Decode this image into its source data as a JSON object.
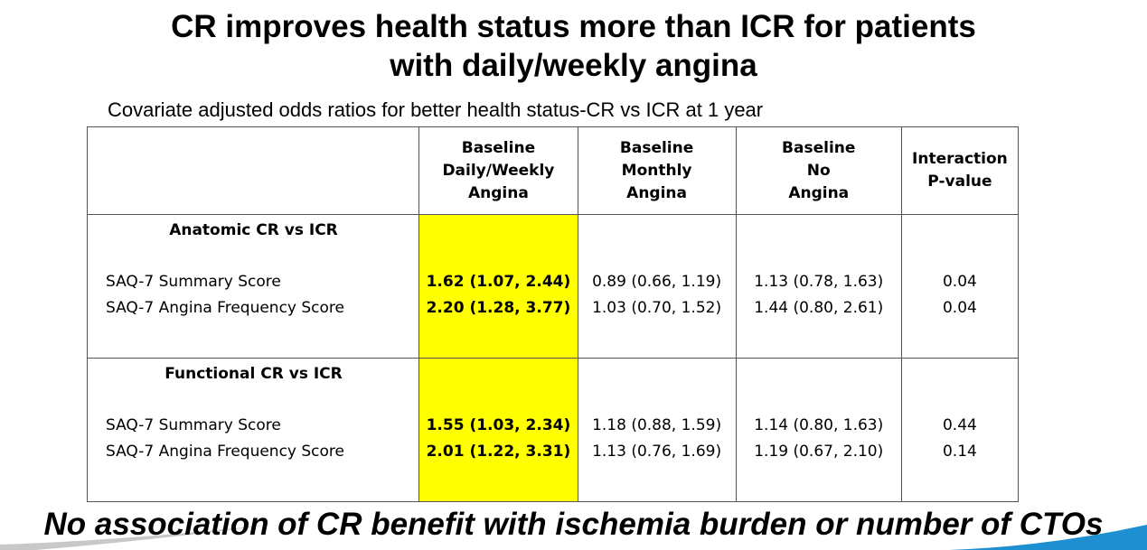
{
  "title": {
    "line1": "CR improves health status more than ICR for patients",
    "line2": "with daily/weekly angina"
  },
  "subtitle": "Covariate adjusted odds ratios for better health status-CR vs ICR at 1 year",
  "table": {
    "headers": [
      [
        "Baseline",
        "Daily/Weekly",
        "Angina"
      ],
      [
        "Baseline",
        "Monthly",
        "Angina"
      ],
      [
        "Baseline",
        "No",
        "Angina"
      ],
      [
        "Interaction",
        "P-value"
      ]
    ],
    "groups": [
      {
        "title": "Anatomic CR vs ICR",
        "rows": [
          {
            "label": "SAQ-7 Summary Score",
            "daily_weekly": "1.62 (1.07, 2.44)",
            "monthly": "0.89 (0.66, 1.19)",
            "none": "1.13 (0.78, 1.63)",
            "p_value": "0.04"
          },
          {
            "label": "SAQ-7 Angina Frequency Score",
            "daily_weekly": "2.20 (1.28, 3.77)",
            "monthly": "1.03 (0.70, 1.52)",
            "none": "1.44 (0.80, 2.61)",
            "p_value": "0.04"
          }
        ]
      },
      {
        "title": "Functional CR vs ICR",
        "rows": [
          {
            "label": "SAQ-7 Summary Score",
            "daily_weekly": "1.55 (1.03, 2.34)",
            "monthly": "1.18 (0.88, 1.59)",
            "none": "1.14 (0.80, 1.63)",
            "p_value": "0.44"
          },
          {
            "label": "SAQ-7 Angina Frequency Score",
            "daily_weekly": "2.01 (1.22, 3.31)",
            "monthly": "1.13 (0.76, 1.69)",
            "none": "1.19 (0.67, 2.10)",
            "p_value": "0.14"
          }
        ]
      }
    ]
  },
  "footer": "No association of CR benefit with ischemia burden or number of CTOs",
  "colors": {
    "highlight": "#ffff00",
    "swoosh_left": "#c8c8c8",
    "swoosh_right": "#1e8fd0"
  }
}
